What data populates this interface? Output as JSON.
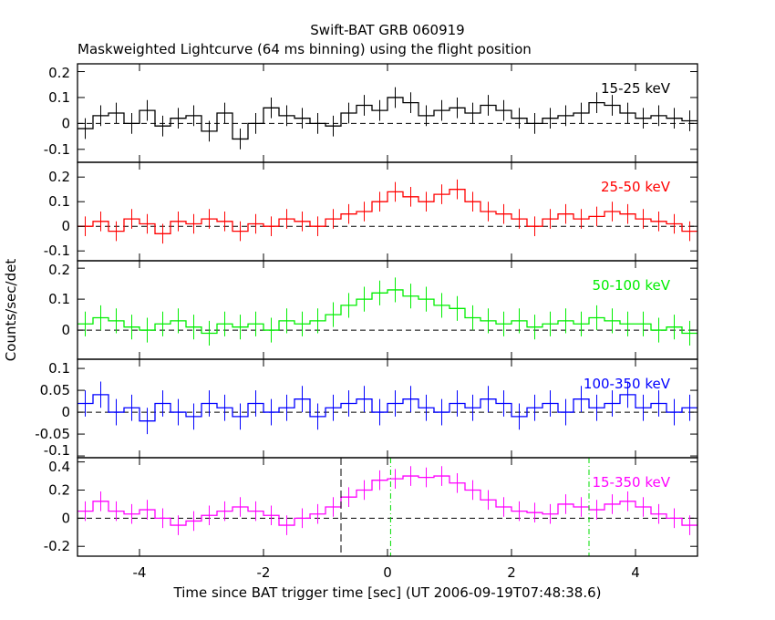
{
  "chart_data": {
    "type": "line",
    "title": "Swift-BAT GRB 060919",
    "subtitle": "Maskweighted Lightcurve (64 ms binning) using the flight position",
    "xlabel": "Time since BAT trigger time [sec] (UT 2006-09-19T07:48:38.6)",
    "ylabel": "Counts/sec/det",
    "xlim": [
      -5,
      5
    ],
    "xticks": [
      -4,
      -2,
      0,
      2,
      4
    ],
    "x_start": -5,
    "x_step": 0.25,
    "vlines": {
      "black_dashed": [
        -0.75
      ],
      "green_dashdot": [
        0.05,
        3.25
      ]
    },
    "panels": [
      {
        "name": "15-25 keV",
        "color": "#000000",
        "ylim": [
          -0.15,
          0.23
        ],
        "yticks": [
          -0.1,
          0,
          0.1,
          0.2
        ],
        "yticklabels": [
          "-0.1",
          "0",
          "0.1",
          "0.2"
        ],
        "error": 0.04,
        "values": [
          -0.02,
          0.03,
          0.04,
          0.0,
          0.05,
          -0.01,
          0.02,
          0.03,
          -0.03,
          0.04,
          -0.06,
          0.0,
          0.06,
          0.03,
          0.02,
          0.0,
          -0.01,
          0.04,
          0.07,
          0.05,
          0.1,
          0.08,
          0.03,
          0.05,
          0.06,
          0.04,
          0.07,
          0.05,
          0.02,
          0.0,
          0.02,
          0.03,
          0.04,
          0.08,
          0.07,
          0.04,
          0.02,
          0.03,
          0.02,
          0.01
        ]
      },
      {
        "name": "25-50 keV",
        "color": "#ff0000",
        "ylim": [
          -0.14,
          0.26
        ],
        "yticks": [
          -0.1,
          0,
          0.1,
          0.2
        ],
        "yticklabels": [
          "-0.1",
          "0",
          "0.1",
          "0.2"
        ],
        "error": 0.04,
        "values": [
          0.0,
          0.02,
          -0.02,
          0.03,
          0.01,
          -0.03,
          0.02,
          0.01,
          0.03,
          0.02,
          -0.02,
          0.01,
          0.0,
          0.03,
          0.02,
          0.0,
          0.03,
          0.05,
          0.06,
          0.1,
          0.14,
          0.12,
          0.1,
          0.13,
          0.15,
          0.1,
          0.06,
          0.05,
          0.03,
          0.0,
          0.03,
          0.05,
          0.03,
          0.04,
          0.06,
          0.05,
          0.03,
          0.02,
          0.01,
          -0.02
        ]
      },
      {
        "name": "50-100 keV",
        "color": "#00ee00",
        "ylim": [
          -0.094,
          0.224
        ],
        "yticks": [
          0,
          0.1,
          0.2
        ],
        "yticklabels": [
          "0",
          "0.1",
          "0.2"
        ],
        "error": 0.04,
        "values": [
          0.02,
          0.04,
          0.03,
          0.01,
          0.0,
          0.02,
          0.03,
          0.01,
          -0.01,
          0.02,
          0.01,
          0.02,
          0.0,
          0.03,
          0.02,
          0.03,
          0.05,
          0.08,
          0.1,
          0.12,
          0.13,
          0.11,
          0.1,
          0.08,
          0.07,
          0.04,
          0.03,
          0.02,
          0.03,
          0.01,
          0.02,
          0.03,
          0.02,
          0.04,
          0.03,
          0.02,
          0.02,
          0.0,
          0.01,
          -0.01
        ]
      },
      {
        "name": "100-350 keV",
        "color": "#0000ff",
        "ylim": [
          -0.104,
          0.121
        ],
        "yticks": [
          -0.1,
          -0.05,
          0,
          0.05,
          0.1
        ],
        "yticklabels": [
          "-0.1",
          "-0.05",
          "0",
          "0.05",
          "0.1"
        ],
        "error": 0.03,
        "values": [
          0.02,
          0.04,
          0.0,
          0.01,
          -0.02,
          0.02,
          0.0,
          -0.01,
          0.02,
          0.01,
          -0.01,
          0.02,
          0.0,
          0.01,
          0.03,
          -0.01,
          0.01,
          0.02,
          0.03,
          0.0,
          0.02,
          0.03,
          0.01,
          0.0,
          0.02,
          0.01,
          0.03,
          0.02,
          -0.01,
          0.01,
          0.02,
          0.0,
          0.03,
          0.01,
          0.02,
          0.04,
          0.01,
          0.02,
          0.0,
          0.01
        ]
      },
      {
        "name": "15-350 keV",
        "color": "#ff00ff",
        "ylim": [
          -0.27,
          0.43
        ],
        "yticks": [
          -0.2,
          0,
          0.2,
          0.4
        ],
        "yticklabels": [
          "-0.2",
          "0",
          "0.2",
          "0.4"
        ],
        "error": 0.07,
        "values": [
          0.05,
          0.12,
          0.05,
          0.03,
          0.06,
          0.0,
          -0.05,
          -0.02,
          0.02,
          0.05,
          0.08,
          0.05,
          0.02,
          -0.05,
          0.0,
          0.03,
          0.08,
          0.15,
          0.2,
          0.27,
          0.28,
          0.3,
          0.29,
          0.3,
          0.25,
          0.2,
          0.13,
          0.08,
          0.05,
          0.04,
          0.03,
          0.1,
          0.08,
          0.06,
          0.1,
          0.12,
          0.08,
          0.03,
          0.0,
          -0.05
        ]
      }
    ]
  }
}
